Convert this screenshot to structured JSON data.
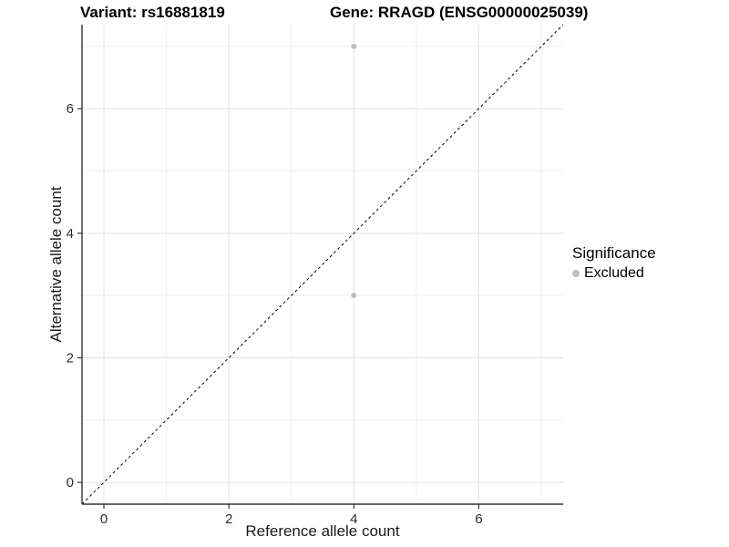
{
  "chart_data": {
    "type": "scatter",
    "title_left": "Variant: rs16881819",
    "title_right": "Gene: RRAGD (ENSG00000025039)",
    "xlabel": "Reference allele count",
    "ylabel": "Alternative allele count",
    "xlim": [
      -0.35,
      7.35
    ],
    "ylim": [
      -0.35,
      7.35
    ],
    "x_ticks": [
      0,
      2,
      4,
      6
    ],
    "y_ticks": [
      0,
      2,
      4,
      6
    ],
    "x_minor": [
      1,
      3,
      5,
      7
    ],
    "y_minor": [
      1,
      3,
      5,
      7
    ],
    "grid": true,
    "points": [
      {
        "x": 4,
        "y": 7,
        "significance": "Excluded"
      },
      {
        "x": 4,
        "y": 3,
        "significance": "Excluded"
      }
    ],
    "identity_line": {
      "style": "dashed",
      "from": [
        -0.35,
        -0.35
      ],
      "to": [
        7.35,
        7.35
      ]
    },
    "legend": {
      "title": "Significance",
      "position": "right",
      "items": [
        {
          "label": "Excluded",
          "color": "#bebebe"
        }
      ]
    },
    "style": {
      "point_color": "#bebebe",
      "point_radius": 3,
      "legend_dot_radius": 4,
      "grid_major_color": "#e3e3e3",
      "grid_minor_color": "#f0f0f0",
      "axis_line_color": "#333333",
      "tick_color": "#333333",
      "tick_label_color": "#2b2b2b",
      "dashed_line_color": "#000000",
      "background": "#ffffff"
    }
  }
}
